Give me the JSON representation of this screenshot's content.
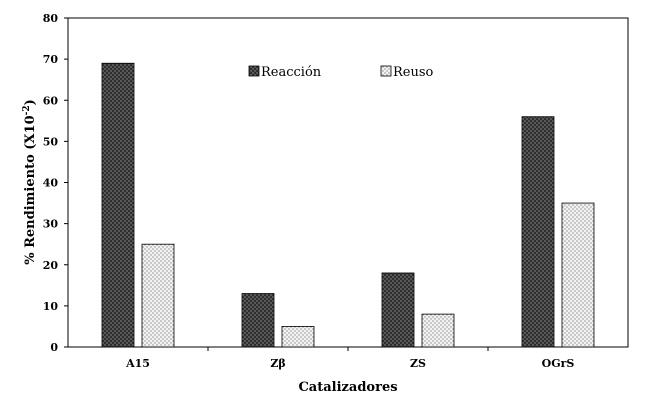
{
  "chart_data": {
    "type": "bar",
    "categories": [
      "A15",
      "Zβ",
      "ZS",
      "OGrS"
    ],
    "series": [
      {
        "name": "Reacción",
        "values": [
          69,
          13,
          18,
          56
        ],
        "color": "#3a3a3a",
        "pattern": "dark-dots"
      },
      {
        "name": "Reuso",
        "values": [
          25,
          5,
          8,
          35
        ],
        "color": "#d6d6d6",
        "pattern": "light-dots"
      }
    ],
    "xlabel": "Catalizadores",
    "ylabel": "% Rendimiento (X10",
    "ylabel_superscript": "-2",
    "ylabel_suffix": ")",
    "ylim": [
      0,
      80
    ],
    "yticks": [
      0,
      10,
      20,
      30,
      40,
      50,
      60,
      70,
      80
    ],
    "grid": false,
    "legend_position": "top-center"
  }
}
